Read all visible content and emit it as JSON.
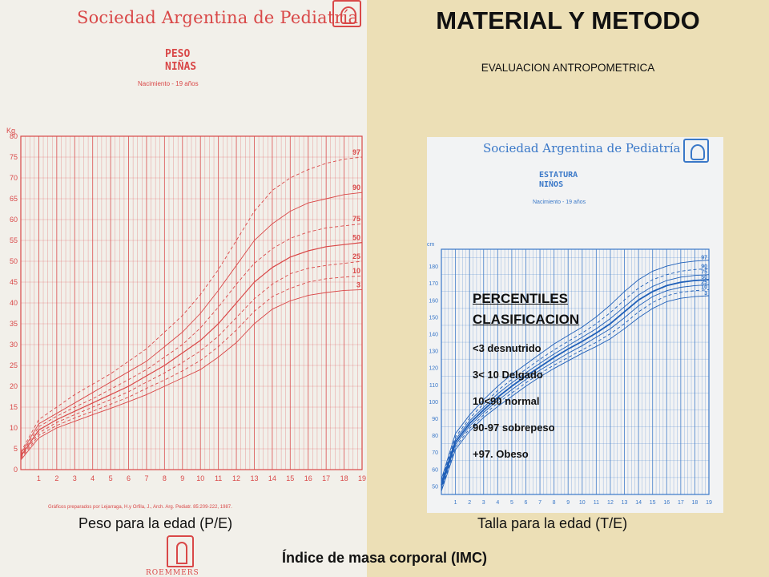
{
  "slide": {
    "title": "MATERIAL Y METODO",
    "subtitle": "EVALUACION ANTROPOMETRICA",
    "caption_left": "Peso para la edad (P/E)",
    "caption_right": "Talla para la edad (T/E)",
    "footer": "Índice de masa corporal (IMC)",
    "background_color": "#ecdfb6"
  },
  "percentiles": {
    "heading1": "PERCENTILES",
    "heading2": "CLASIFICACION",
    "items": [
      "<3 desnutrido",
      "3< 10 Delgado",
      "10<90 normal",
      "90-97 sobrepeso",
      "+97. Obeso"
    ]
  },
  "left_sheet": {
    "org": "Sociedad Argentina de Pediatría",
    "chart_title_1": "PESO",
    "chart_title_2": "NIÑAS",
    "chart_subtitle": "Nacimiento - 19 años",
    "credit": "Gráficos preparados por Lejarraga, H.y Orfila, J., Arch. Arg. Pediatr. 85:209-222, 1987.",
    "sponsor": "ROEMMERS",
    "color": "#d94848"
  },
  "right_sheet": {
    "org": "Sociedad Argentina de Pediatría",
    "chart_title_1": "ESTATURA",
    "chart_title_2": "NIÑOS",
    "chart_subtitle": "Nacimiento - 19 años",
    "color": "#3a78c8"
  },
  "chart_data": [
    {
      "type": "line",
      "title": "PESO NIÑAS",
      "ylabel": "Kg",
      "xlabel": "",
      "x": [
        0,
        1,
        2,
        3,
        4,
        5,
        6,
        7,
        8,
        9,
        10,
        11,
        12,
        13,
        14,
        15,
        16,
        17,
        18,
        19
      ],
      "xticks": [
        1,
        2,
        3,
        4,
        5,
        6,
        7,
        8,
        9,
        10,
        11,
        12,
        13,
        14,
        15,
        16,
        17,
        18,
        19
      ],
      "yticks": [
        0,
        5,
        10,
        15,
        20,
        25,
        30,
        35,
        40,
        45,
        50,
        55,
        60,
        65,
        70,
        75,
        80
      ],
      "xlim": [
        0,
        19
      ],
      "ylim": [
        0,
        80
      ],
      "grid": true,
      "series": [
        {
          "name": "97",
          "dashed": true,
          "values": [
            4.2,
            12,
            15,
            18,
            20.5,
            23,
            26,
            29,
            33,
            37,
            42,
            48,
            55,
            62,
            67,
            70,
            72,
            73.5,
            74.5,
            75
          ]
        },
        {
          "name": "90",
          "dashed": false,
          "values": [
            3.8,
            11,
            13.5,
            16,
            18.5,
            21,
            23.5,
            26,
            29.5,
            33,
            37.5,
            43,
            49,
            55,
            59,
            62,
            64,
            65,
            66,
            66.5
          ]
        },
        {
          "name": "75",
          "dashed": true,
          "values": [
            3.5,
            10.3,
            12.8,
            15,
            17,
            19.3,
            21.6,
            24,
            27,
            30,
            34,
            39,
            44.5,
            49.5,
            53,
            55.5,
            57,
            58,
            58.5,
            59
          ]
        },
        {
          "name": "50",
          "dashed": false,
          "values": [
            3.2,
            9.5,
            12,
            14,
            16,
            18,
            20,
            22.5,
            25,
            28,
            31,
            35,
            40,
            45,
            48.5,
            51,
            52.5,
            53.5,
            54,
            54.5
          ]
        },
        {
          "name": "25",
          "dashed": true,
          "values": [
            2.9,
            8.8,
            11.3,
            13.2,
            15,
            16.8,
            18.7,
            21,
            23.2,
            25.7,
            28.5,
            32,
            36.5,
            41,
            44.5,
            47,
            48.3,
            49,
            49.5,
            50
          ]
        },
        {
          "name": "10",
          "dashed": true,
          "values": [
            2.6,
            8.2,
            10.6,
            12.4,
            14,
            15.7,
            17.4,
            19.5,
            21.5,
            23.7,
            26.2,
            29.5,
            33.5,
            38,
            41.5,
            43.5,
            45,
            45.8,
            46.2,
            46.5
          ]
        },
        {
          "name": "3",
          "dashed": false,
          "values": [
            2.3,
            7.6,
            10,
            11.6,
            13.2,
            14.7,
            16.3,
            18,
            20,
            22,
            24,
            27,
            30.5,
            35,
            38.5,
            40.5,
            41.8,
            42.5,
            43,
            43.2
          ]
        }
      ]
    },
    {
      "type": "line",
      "title": "ESTATURA NIÑOS",
      "ylabel": "cm",
      "xlabel": "",
      "x": [
        0,
        1,
        2,
        3,
        4,
        5,
        6,
        7,
        8,
        9,
        10,
        11,
        12,
        13,
        14,
        15,
        16,
        17,
        18,
        19
      ],
      "xticks": [
        1,
        2,
        3,
        4,
        5,
        6,
        7,
        8,
        9,
        10,
        11,
        12,
        13,
        14,
        15,
        16,
        17,
        18,
        19
      ],
      "yticks": [
        50,
        60,
        70,
        80,
        90,
        100,
        110,
        120,
        130,
        140,
        150,
        160,
        170,
        180
      ],
      "xlim": [
        0,
        19
      ],
      "ylim": [
        45,
        190
      ],
      "grid": true,
      "series": [
        {
          "name": "97",
          "dashed": false,
          "values": [
            54,
            81,
            92,
            101,
            109,
            116,
            122,
            128,
            134,
            139,
            144,
            150,
            157,
            165,
            172,
            177,
            180,
            182,
            183,
            183.5
          ]
        },
        {
          "name": "90",
          "dashed": true,
          "values": [
            53,
            79,
            90,
            98.5,
            106.5,
            113,
            119,
            125,
            130.5,
            135.5,
            140.5,
            146,
            152.5,
            160,
            167,
            172,
            175,
            177,
            178,
            178.5
          ]
        },
        {
          "name": "75",
          "dashed": false,
          "values": [
            52,
            77.5,
            88.5,
            96.5,
            104.5,
            111,
            117,
            122.5,
            128,
            133,
            138,
            143,
            149,
            156,
            163,
            168,
            171.5,
            173.5,
            174.5,
            175
          ]
        },
        {
          "name": "50",
          "dashed": false,
          "values": [
            50.5,
            76,
            87,
            95,
            102.5,
            109,
            115,
            120.5,
            126,
            131,
            135.5,
            140.5,
            146,
            153,
            160,
            165,
            168.5,
            170.5,
            171.5,
            172
          ]
        },
        {
          "name": "25",
          "dashed": false,
          "values": [
            49,
            74.5,
            85.5,
            93.5,
            100.5,
            107,
            113,
            118.5,
            123.5,
            128.5,
            133,
            138,
            143,
            149.5,
            156.5,
            162,
            165.5,
            167.5,
            168.5,
            169
          ]
        },
        {
          "name": "10",
          "dashed": true,
          "values": [
            48,
            73,
            84,
            92,
            99,
            105,
            111,
            116.5,
            121.5,
            126,
            130.5,
            135,
            140,
            146,
            153,
            158.5,
            162.5,
            164.5,
            165.5,
            166
          ]
        },
        {
          "name": "3",
          "dashed": false,
          "values": [
            47,
            71.5,
            82.5,
            90.5,
            97,
            103,
            109,
            114.5,
            119.5,
            124,
            128.5,
            132.5,
            137,
            143,
            149.5,
            155,
            159,
            161,
            162,
            162.5
          ]
        }
      ]
    }
  ]
}
